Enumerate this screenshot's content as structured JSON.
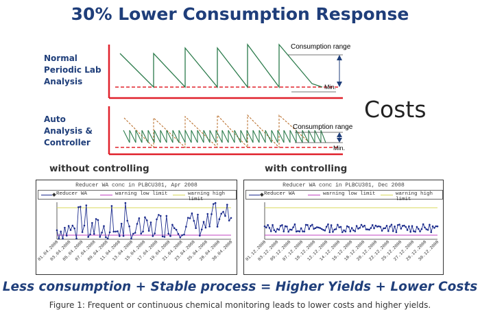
{
  "title": "30% Lower Consumption Response",
  "diagram": {
    "top_label": [
      "Normal",
      "Periodic Lab",
      "Analysis"
    ],
    "bottom_label": [
      "Auto",
      "Analysis &",
      "Controller"
    ],
    "consumption_range": "Consumption range",
    "min": "Min.",
    "costs": "Costs"
  },
  "subtitles": {
    "left": "without controlling",
    "right": "with controlling"
  },
  "charts": {
    "left": {
      "title": "Reducer WA conc in PLBCU301, Apr 2008",
      "legend": [
        "Reducer WA",
        "warning low limit",
        "warning high limit"
      ],
      "x_ticks": [
        "01.04.2008",
        "03.04.2008",
        "05.04.2008",
        "07.04.2008",
        "09.04.2008",
        "11.04.2008",
        "13.04.2008",
        "15.04.2008",
        "17.04.2008",
        "19.04.2008",
        "21.04.2008",
        "23.04.2008",
        "25.04.2008",
        "28.04.2008",
        "30.04.2008"
      ]
    },
    "right": {
      "title": "Reducer WA conc in PLBCU301, Dec 2008",
      "legend": [
        "Reducer WA",
        "warning low limit",
        "warning high limit"
      ],
      "x_ticks": [
        "01.12.2008",
        "03.12.2008",
        "05.12.2008",
        "07.12.2008",
        "10.12.2008",
        "12.12.2008",
        "14.12.2008",
        "16.12.2008",
        "18.12.2008",
        "20.12.2008",
        "22.12.2008",
        "25.12.2008",
        "27.12.2008",
        "29.12.2008",
        "30.12.2008"
      ]
    }
  },
  "equation": "Less consumption + Stable process = Higher Yields + Lower Costs",
  "caption": "Figure 1: Frequent or continuous chemical monitoring leads to lower costs and higher yields.",
  "colors": {
    "title": "#1f3e7a",
    "axis_red": "#e0202a",
    "sawtooth": "#2a7a4a",
    "dashed_brown": "#b5651d",
    "arrow_blue": "#1f3e7a",
    "data_series": "#1a2a8c",
    "low_limit": "#c040c0",
    "high_limit": "#d8d85a"
  }
}
